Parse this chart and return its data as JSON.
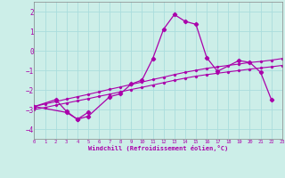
{
  "background_color": "#cceee8",
  "grid_color": "#aadddd",
  "line_color": "#aa00aa",
  "xlim": [
    0,
    23
  ],
  "ylim": [
    -4.5,
    2.5
  ],
  "xticks": [
    0,
    1,
    2,
    3,
    4,
    5,
    6,
    7,
    8,
    9,
    10,
    11,
    12,
    13,
    14,
    15,
    16,
    17,
    18,
    19,
    20,
    21,
    22,
    23
  ],
  "yticks": [
    -4,
    -3,
    -2,
    -1,
    0,
    1,
    2
  ],
  "xlabel": "Windchill (Refroidissement éolien,°C)",
  "line1_x": [
    0,
    1,
    2,
    3,
    4,
    5,
    6,
    7,
    8,
    9,
    10,
    11,
    12,
    13,
    14,
    15,
    16,
    17,
    18,
    19,
    20,
    21,
    22,
    23
  ],
  "line1_y": [
    -2.85,
    -2.72,
    -2.6,
    -2.47,
    -2.35,
    -2.23,
    -2.1,
    -1.97,
    -1.85,
    -1.72,
    -1.6,
    -1.47,
    -1.35,
    -1.22,
    -1.1,
    -1.0,
    -0.9,
    -0.82,
    -0.75,
    -0.68,
    -0.6,
    -0.55,
    -0.48,
    -0.4
  ],
  "line2_x": [
    0,
    1,
    2,
    3,
    4,
    5,
    6,
    7,
    8,
    9,
    10,
    11,
    12,
    13,
    14,
    15,
    16,
    17,
    18,
    19,
    20,
    21,
    22,
    23
  ],
  "line2_y": [
    -3.0,
    -2.9,
    -2.78,
    -2.67,
    -2.56,
    -2.45,
    -2.33,
    -2.22,
    -2.1,
    -1.98,
    -1.87,
    -1.75,
    -1.63,
    -1.51,
    -1.4,
    -1.3,
    -1.22,
    -1.15,
    -1.08,
    -1.01,
    -0.94,
    -0.88,
    -0.82,
    -0.75
  ],
  "line3_x": [
    0,
    2,
    3,
    4,
    5,
    7,
    8,
    9,
    10,
    11,
    12,
    13,
    14,
    15,
    16,
    17,
    19,
    20,
    21,
    22
  ],
  "line3_y": [
    -2.85,
    -2.5,
    -3.1,
    -3.5,
    -3.35,
    -2.35,
    -2.2,
    -1.7,
    -1.5,
    -0.4,
    1.1,
    1.85,
    1.5,
    1.35,
    -0.35,
    -1.05,
    -0.5,
    -0.6,
    -1.1,
    -2.5
  ],
  "line4_x": [
    0,
    3,
    4,
    5
  ],
  "line4_y": [
    -2.85,
    -3.15,
    -3.5,
    -3.15
  ]
}
